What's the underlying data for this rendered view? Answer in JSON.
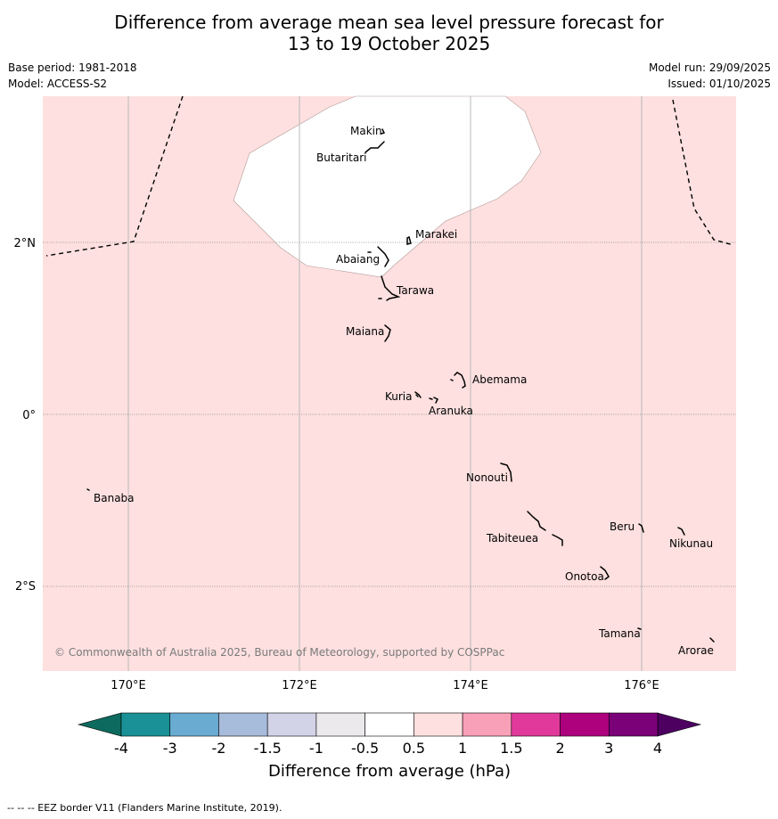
{
  "title": {
    "line1": "Difference from average mean sea level pressure forecast for",
    "line2": "13 to 19 October 2025"
  },
  "meta": {
    "base_period": "Base period: 1981-2018",
    "model": "Model: ACCESS-S2",
    "model_run": "Model run: 29/09/2025",
    "issued": "Issued: 01/10/2025"
  },
  "map": {
    "background_color": "#fde0df",
    "anomaly_region_color": "#ffffff",
    "lon_ticks": [
      "170°E",
      "172°E",
      "174°E",
      "176°E"
    ],
    "lat_ticks": [
      "2°N",
      "0°",
      "2°S"
    ],
    "places": {
      "makin": "Makin",
      "butaritari": "Butaritari",
      "marakei": "Marakei",
      "abaiang": "Abaiang",
      "tarawa": "Tarawa",
      "maiana": "Maiana",
      "abemama": "Abemama",
      "kuria": "Kuria",
      "aranuka": "Aranuka",
      "nonouti": "Nonouti",
      "banaba": "Banaba",
      "beru": "Beru",
      "nikunau": "Nikunau",
      "tabiteuea": "Tabiteuea",
      "onotoa": "Onotoa",
      "tamana": "Tamana",
      "arorae": "Arorae"
    },
    "copyright": "© Commonwealth of Australia 2025, Bureau of Meteorology, supported by COSPPac"
  },
  "colorbar": {
    "title": "Difference from average (hPa)",
    "ticks": [
      "-4",
      "-3",
      "-2",
      "-1.5",
      "-1",
      "-0.5",
      "0.5",
      "1",
      "1.5",
      "2",
      "3",
      "4"
    ],
    "colors": [
      "#1a9196",
      "#6aabd2",
      "#a7bbdb",
      "#d2d3e7",
      "#ebe9ec",
      "#ffffff",
      "#fde0df",
      "#f9a0b9",
      "#e0399b",
      "#ae017e",
      "#7a0177"
    ],
    "under_color": "#0d6a5e",
    "over_color": "#4d0060"
  },
  "footer": "--  --  -- EEZ border V11 (Flanders Marine Institute, 2019)."
}
